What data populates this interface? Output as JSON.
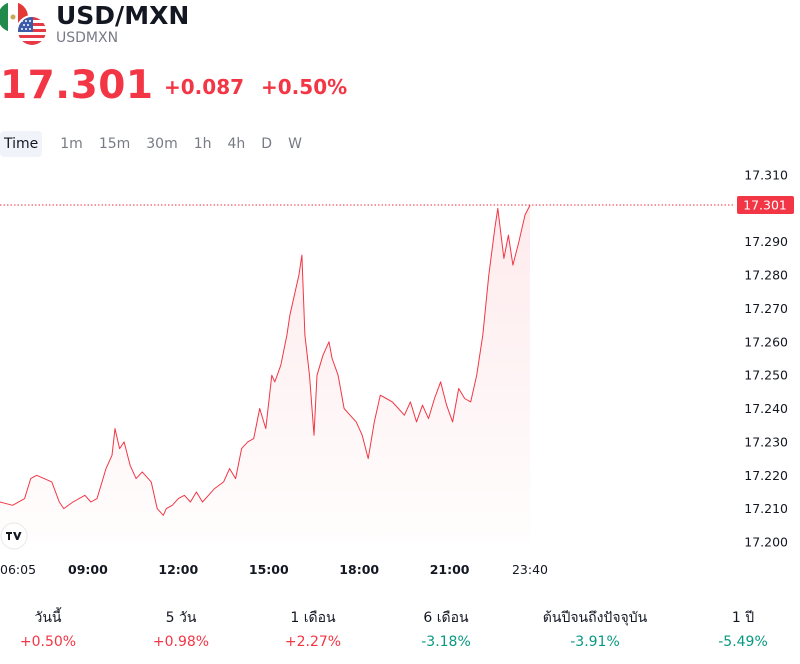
{
  "header": {
    "title": "USD/MXN",
    "subtitle": "USDMXN",
    "base_flag_icon": "mexico-flag-icon",
    "quote_flag_icon": "us-flag-icon"
  },
  "quote": {
    "price": "17.301",
    "change": "+0.087",
    "change_percent": "+0.50%",
    "color": "#f23645"
  },
  "timeframes": [
    {
      "label": "Time",
      "active": true
    },
    {
      "label": "1m",
      "active": false
    },
    {
      "label": "15m",
      "active": false
    },
    {
      "label": "30m",
      "active": false
    },
    {
      "label": "1h",
      "active": false
    },
    {
      "label": "4h",
      "active": false
    },
    {
      "label": "D",
      "active": false
    },
    {
      "label": "W",
      "active": false
    }
  ],
  "chart": {
    "logo_icon": "tradingview-logo-icon",
    "current_price_label": "17.301"
  },
  "chart_data": {
    "type": "area",
    "y_ticks": [
      "17.310",
      "17.300",
      "17.290",
      "17.280",
      "17.270",
      "17.260",
      "17.250",
      "17.240",
      "17.230",
      "17.220",
      "17.210",
      "17.200"
    ],
    "ylim": [
      17.2,
      17.31
    ],
    "x_ticks": [
      "06:05",
      "09:00",
      "12:00",
      "15:00",
      "18:00",
      "21:00",
      "23:40"
    ],
    "x_tick_hours": [
      6.083,
      9,
      12,
      15,
      18,
      21,
      23.667
    ],
    "last_value": 17.301,
    "line_color": "#f23645",
    "grid": false,
    "series": [
      {
        "x": [
          6.08,
          6.5,
          6.9,
          7.1,
          7.3,
          7.8,
          8.05,
          8.2,
          8.5,
          8.9,
          9.1,
          9.3,
          9.6,
          9.8,
          9.9,
          10.05,
          10.2,
          10.4,
          10.6,
          10.8,
          11.1,
          11.3,
          11.5,
          11.6,
          11.8,
          12.0,
          12.2,
          12.4,
          12.6,
          12.8,
          13.0,
          13.2,
          13.5,
          13.7,
          13.9,
          14.1,
          14.3,
          14.5,
          14.7,
          14.9,
          15.1,
          15.2,
          15.4,
          15.6,
          15.7,
          15.9,
          16.0,
          16.1,
          16.2,
          16.35,
          16.5,
          16.6,
          16.8,
          17.0,
          17.1,
          17.3,
          17.5,
          17.7,
          17.9,
          18.1,
          18.3,
          18.5,
          18.7,
          18.9,
          19.1,
          19.3,
          19.5,
          19.7,
          19.9,
          20.1,
          20.3,
          20.5,
          20.7,
          20.9,
          21.1,
          21.3,
          21.5,
          21.7,
          21.9,
          22.1,
          22.3,
          22.5,
          22.6,
          22.8,
          22.95,
          23.1,
          23.3,
          23.5,
          23.67
        ],
        "y": [
          17.212,
          17.211,
          17.213,
          17.219,
          17.22,
          17.218,
          17.212,
          17.21,
          17.212,
          17.214,
          17.212,
          17.213,
          17.222,
          17.226,
          17.234,
          17.228,
          17.23,
          17.223,
          17.219,
          17.221,
          17.218,
          17.21,
          17.208,
          17.21,
          17.211,
          17.213,
          17.214,
          17.212,
          17.215,
          17.212,
          17.214,
          17.216,
          17.218,
          17.222,
          17.219,
          17.228,
          17.23,
          17.231,
          17.24,
          17.234,
          17.25,
          17.248,
          17.253,
          17.262,
          17.268,
          17.276,
          17.28,
          17.286,
          17.262,
          17.25,
          17.232,
          17.25,
          17.256,
          17.26,
          17.255,
          17.25,
          17.24,
          17.238,
          17.236,
          17.232,
          17.225,
          17.236,
          17.244,
          17.243,
          17.242,
          17.24,
          17.238,
          17.242,
          17.236,
          17.241,
          17.237,
          17.243,
          17.248,
          17.241,
          17.236,
          17.246,
          17.243,
          17.242,
          17.25,
          17.262,
          17.28,
          17.294,
          17.3,
          17.285,
          17.292,
          17.283,
          17.29,
          17.298,
          17.301
        ]
      }
    ]
  },
  "performance": [
    {
      "label": "วันนี้",
      "value": "+0.50%",
      "trend": "up"
    },
    {
      "label": "5 วัน",
      "value": "+0.98%",
      "trend": "up"
    },
    {
      "label": "1 เดือน",
      "value": "+2.27%",
      "trend": "up"
    },
    {
      "label": "6 เดือน",
      "value": "-3.18%",
      "trend": "down"
    },
    {
      "label": "ต้นปีจนถึงปัจจุบัน",
      "value": "-3.91%",
      "trend": "down"
    },
    {
      "label": "1 ปี",
      "value": "-5.49%",
      "trend": "down"
    }
  ]
}
